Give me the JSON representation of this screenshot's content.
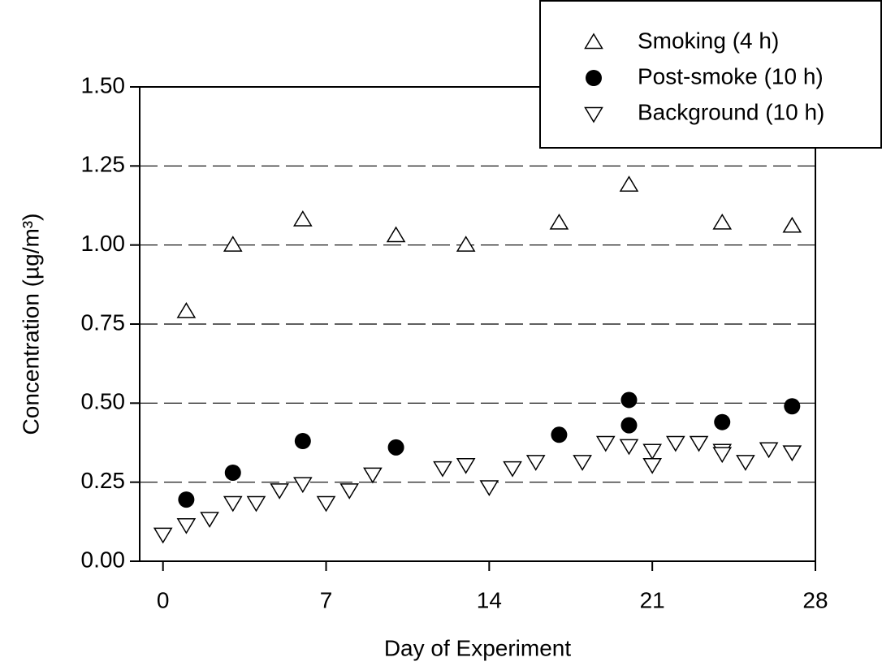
{
  "chart_data": {
    "type": "scatter",
    "xlabel": "Day of Experiment",
    "ylabel": "Concentration (µg/m³)",
    "xlim": [
      -1,
      28
    ],
    "xticks": [
      0,
      7,
      14,
      21,
      28
    ],
    "ylim": [
      0,
      1.5
    ],
    "yticks": [
      {
        "value": 0,
        "label": "0.00"
      },
      {
        "value": 0.25,
        "label": "0.25"
      },
      {
        "value": 0.5,
        "label": "0.50"
      },
      {
        "value": 0.75,
        "label": "0.75"
      },
      {
        "value": 1,
        "label": "1.00"
      },
      {
        "value": 1.25,
        "label": "1.25"
      },
      {
        "value": 1.5,
        "label": "1.50"
      }
    ],
    "grid_values": [
      0.25,
      0.5,
      0.75,
      1,
      1.25
    ],
    "legend": "upper right",
    "series": [
      {
        "name": "Smoking (4 h)",
        "marker": "triangle-up",
        "color": "#000000",
        "x": [
          1,
          3,
          6,
          10,
          13,
          17,
          20,
          24,
          27
        ],
        "values": [
          0.79,
          1.0,
          1.08,
          1.03,
          1.0,
          1.07,
          1.19,
          1.07,
          1.06
        ]
      },
      {
        "name": "Post-smoke (10 h)",
        "marker": "circle",
        "color": "#000000",
        "x": [
          1,
          3,
          6,
          10,
          17,
          20,
          20,
          24,
          27
        ],
        "values": [
          0.195,
          0.28,
          0.38,
          0.36,
          0.4,
          0.51,
          0.43,
          0.44,
          0.49
        ]
      },
      {
        "name": "Background (10 h)",
        "marker": "triangle-down",
        "color": "#000000",
        "x": [
          0,
          1,
          2,
          3,
          4,
          5,
          6,
          7,
          8,
          9,
          12,
          13,
          14,
          15,
          16,
          18,
          19,
          20,
          21,
          21,
          22,
          23,
          24,
          24,
          25,
          26,
          27
        ],
        "values": [
          0.085,
          0.115,
          0.135,
          0.185,
          0.185,
          0.225,
          0.245,
          0.185,
          0.225,
          0.275,
          0.295,
          0.305,
          0.235,
          0.295,
          0.315,
          0.315,
          0.375,
          0.365,
          0.35,
          0.305,
          0.375,
          0.375,
          0.35,
          0.34,
          0.315,
          0.355,
          0.345
        ]
      }
    ]
  }
}
